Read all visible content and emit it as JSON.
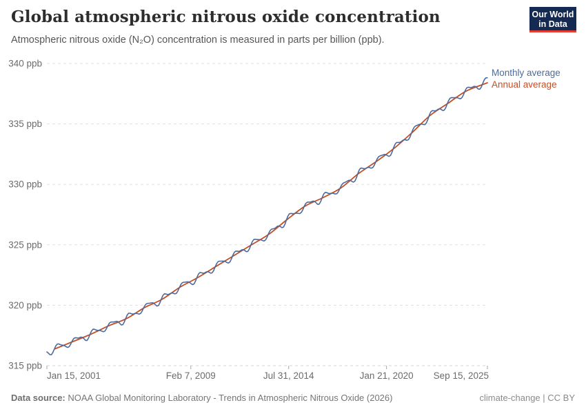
{
  "header": {
    "title": "Global atmospheric nitrous oxide concentration",
    "subtitle": "Atmospheric nitrous oxide (N₂O) concentration is measured in parts per billion (ppb).",
    "logo": {
      "line1": "Our World",
      "line2": "in Data",
      "bg_color": "#142a52",
      "accent_color": "#e23d33"
    }
  },
  "footer": {
    "source_label": "Data source:",
    "source_text": " NOAA Global Monitoring Laboratory - Trends in Atmospheric Nitrous Oxide (2026)",
    "attribution": "climate-change | CC BY"
  },
  "chart_data": {
    "type": "line",
    "title": "Global atmospheric nitrous oxide concentration",
    "ylabel": "",
    "xlabel": "",
    "unit": "ppb",
    "ylim": [
      315,
      340
    ],
    "xlim_time": [
      2001.04,
      2025.71
    ],
    "grid": "horizontal-dashed",
    "legend_position": "right-of-line-ends",
    "colors": {
      "grid": "#e0e0e0",
      "bottom_grid": "#d6d6d6",
      "tick": "#a6a6a6",
      "axis_label": "#6b6b6b"
    },
    "y_ticks": [
      {
        "value": 315,
        "label": "315 ppb"
      },
      {
        "value": 320,
        "label": "320 ppb"
      },
      {
        "value": 325,
        "label": "325 ppb"
      },
      {
        "value": 330,
        "label": "330 ppb"
      },
      {
        "value": 335,
        "label": "335 ppb"
      },
      {
        "value": 340,
        "label": "340 ppb"
      }
    ],
    "x_ticks": [
      {
        "time": 2001.04,
        "label": "Jan 15, 2001",
        "align": "start"
      },
      {
        "time": 2009.1,
        "label": "Feb 7, 2009",
        "align": "middle"
      },
      {
        "time": 2014.58,
        "label": "Jul 31, 2014",
        "align": "middle"
      },
      {
        "time": 2020.06,
        "label": "Jan 21, 2020",
        "align": "middle"
      },
      {
        "time": 2025.71,
        "label": "Sep 15, 2025",
        "align": "end"
      }
    ],
    "series": [
      {
        "id": "monthly",
        "name": "Monthly average",
        "color": "#4C6A9C",
        "derivation": "annual_trend_plus_seasonal_cycle"
      },
      {
        "id": "annual",
        "name": "Annual average",
        "color": "#C34E26",
        "points": [
          [
            2001,
            316.4
          ],
          [
            2002,
            317.0
          ],
          [
            2003,
            317.6
          ],
          [
            2004,
            318.3
          ],
          [
            2005,
            318.9
          ],
          [
            2006,
            319.8
          ],
          [
            2007,
            320.5
          ],
          [
            2008,
            321.5
          ],
          [
            2009,
            322.3
          ],
          [
            2010,
            323.2
          ],
          [
            2011,
            324.1
          ],
          [
            2012,
            325.0
          ],
          [
            2013,
            325.9
          ],
          [
            2014,
            327.1
          ],
          [
            2015,
            328.2
          ],
          [
            2016,
            328.9
          ],
          [
            2017,
            329.7
          ],
          [
            2018,
            330.9
          ],
          [
            2019,
            331.9
          ],
          [
            2020,
            333.0
          ],
          [
            2021,
            334.3
          ],
          [
            2022,
            335.7
          ],
          [
            2023,
            336.7
          ],
          [
            2024,
            337.7
          ],
          [
            2025,
            338.4
          ]
        ]
      }
    ],
    "seasonal_cycle": {
      "amplitude1": 0.27,
      "phase1": 0.54,
      "amplitude2": 0.1,
      "phase2": 0.5,
      "noise_amplitude": 0.05,
      "noise_freq": 9.7,
      "step_per_year": 12
    }
  }
}
